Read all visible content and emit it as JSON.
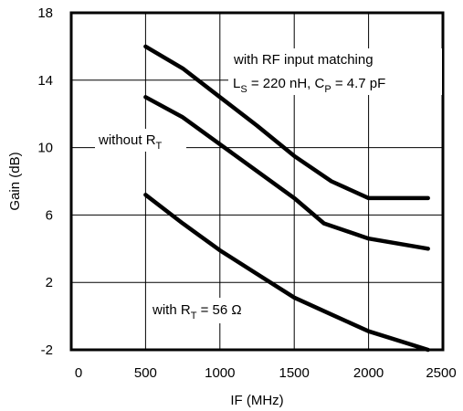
{
  "chart_data": {
    "type": "line",
    "title": "",
    "xlabel": "IF (MHz)",
    "ylabel": "Gain (dB)",
    "xlim": [
      0,
      2500
    ],
    "ylim": [
      -2,
      18
    ],
    "xticks": [
      0,
      500,
      1000,
      1500,
      2000,
      2500
    ],
    "yticks": [
      -2,
      2,
      6,
      10,
      14,
      18
    ],
    "grid": true,
    "series": [
      {
        "annotation": [
          "with RF input matching",
          "L",
          "S",
          " = 220 nH, C",
          "P",
          " = 4.7 pF"
        ],
        "x": [
          500,
          750,
          1000,
          1250,
          1500,
          1750,
          2000,
          2400
        ],
        "y": [
          16.0,
          14.7,
          13.0,
          11.3,
          9.5,
          8.0,
          7.0,
          7.0
        ]
      },
      {
        "annotation": [
          "without R",
          "T"
        ],
        "x": [
          500,
          750,
          1000,
          1250,
          1500,
          1700,
          2000,
          2400
        ],
        "y": [
          13.0,
          11.8,
          10.2,
          8.6,
          7.0,
          5.5,
          4.6,
          4.0
        ]
      },
      {
        "annotation": [
          "with R",
          "T",
          " = 56 Ω"
        ],
        "x": [
          500,
          750,
          1000,
          1250,
          1500,
          1750,
          2000,
          2400
        ],
        "y": [
          7.2,
          5.5,
          3.9,
          2.5,
          1.1,
          0.1,
          -0.9,
          -2.0
        ]
      }
    ]
  }
}
